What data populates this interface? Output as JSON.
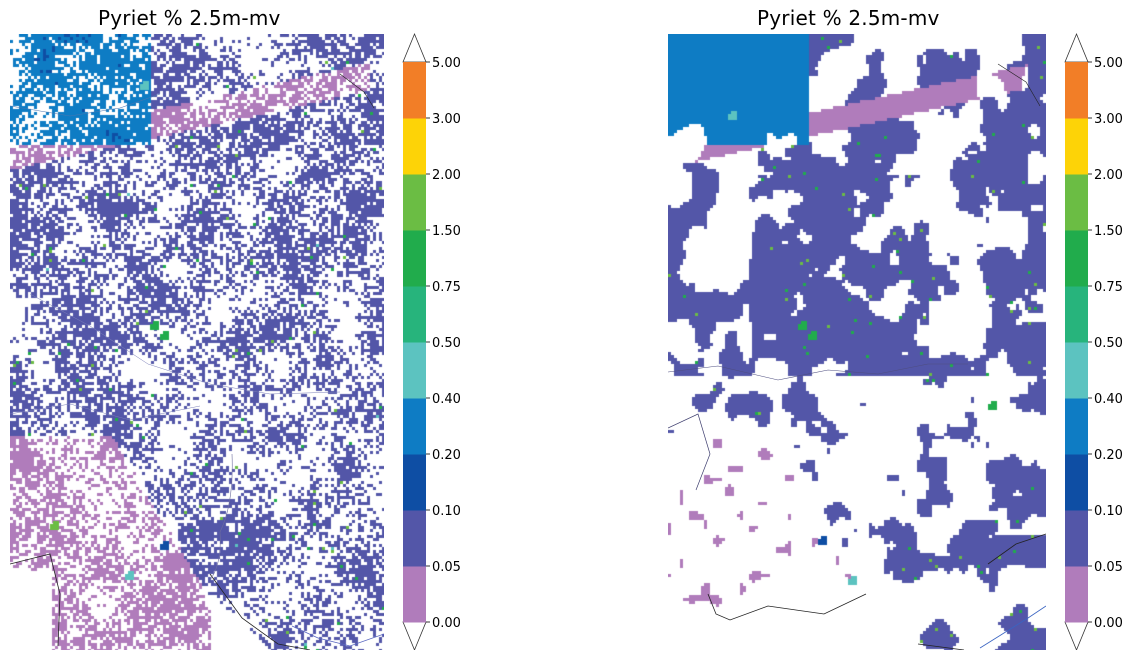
{
  "panels": [
    {
      "title": "Pyriet % 2.5m-mv",
      "style": "scattered"
    },
    {
      "title": "Pyriet % 2.5m-mv",
      "style": "smoothed"
    }
  ],
  "colorbar": {
    "ticks": [
      "0.00",
      "0.05",
      "0.10",
      "0.20",
      "0.40",
      "0.50",
      "0.75",
      "1.50",
      "2.00",
      "3.00",
      "5.00"
    ],
    "colors": [
      "#b07cbb",
      "#5356a8",
      "#0e4ea4",
      "#0e7cc4",
      "#5cc3c0",
      "#27b47c",
      "#21ac4c",
      "#6bbd44",
      "#fdd307",
      "#f27e27"
    ],
    "extend": "both"
  },
  "classes": [
    {
      "name": "0.00-0.05",
      "color": "#b07cbb"
    },
    {
      "name": "0.05-0.10",
      "color": "#5356a8"
    },
    {
      "name": "0.10-0.20",
      "color": "#0e4ea4"
    },
    {
      "name": "0.20-0.40",
      "color": "#0e7cc4"
    },
    {
      "name": "0.40-0.50",
      "color": "#5cc3c0"
    },
    {
      "name": "0.75-1.50",
      "color": "#21ac4c"
    },
    {
      "name": "1.50-2.00",
      "color": "#6bbd44"
    }
  ]
}
